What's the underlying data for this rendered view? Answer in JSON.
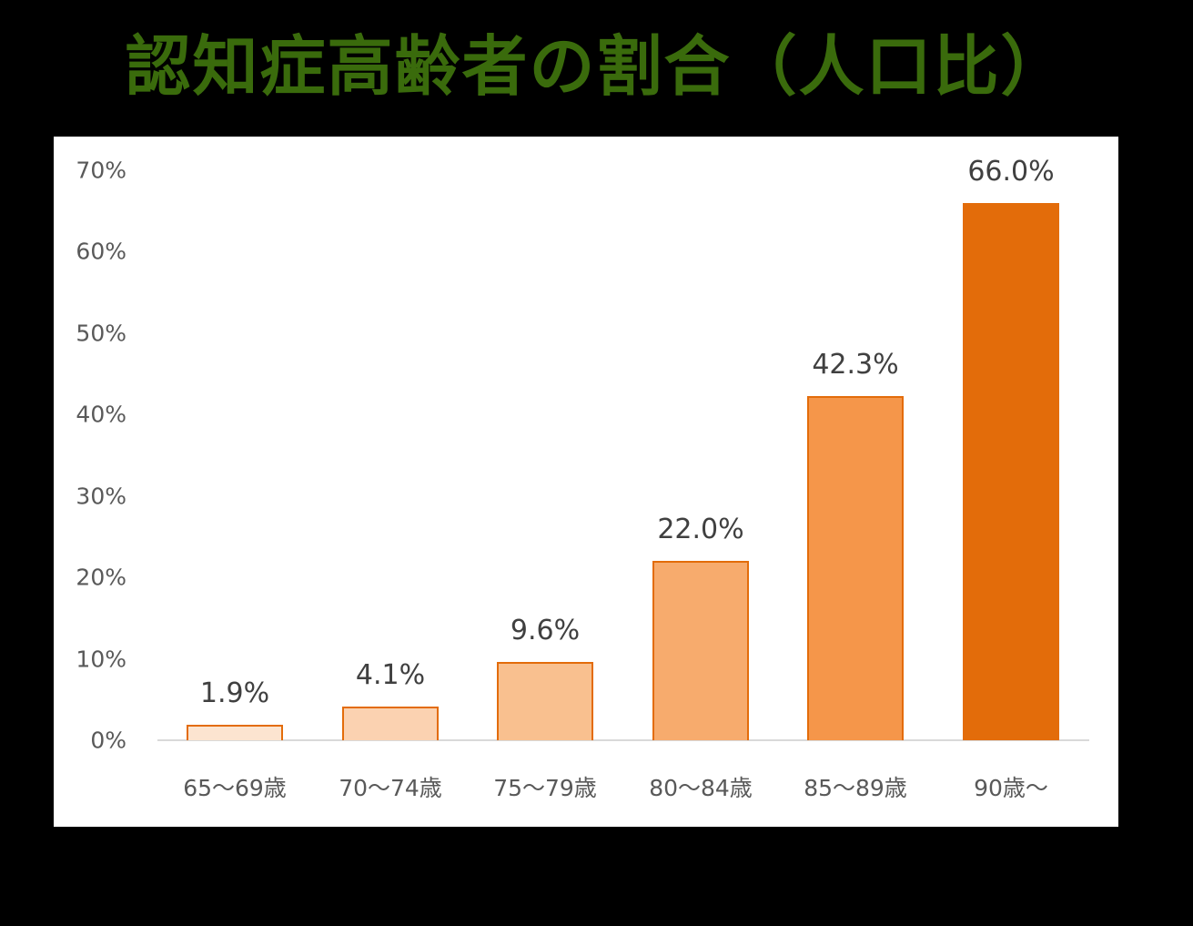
{
  "title": "認知症高齢者の割合（人口比）",
  "chart_data": {
    "type": "bar",
    "title": "認知症高齢者の割合（人口比）",
    "xlabel": "",
    "ylabel": "",
    "categories": [
      "65〜69歳",
      "70〜74歳",
      "75〜79歳",
      "80〜84歳",
      "85〜89歳",
      "90歳〜"
    ],
    "values": [
      1.9,
      4.1,
      9.6,
      22.0,
      42.3,
      66.0
    ],
    "value_labels": [
      "1.9%",
      "4.1%",
      "9.6%",
      "22.0%",
      "42.3%",
      "66.0%"
    ],
    "ylim": [
      0,
      70
    ],
    "yticks": [
      "0%",
      "10%",
      "20%",
      "30%",
      "40%",
      "50%",
      "60%",
      "70%"
    ],
    "grid": false,
    "legend": "none",
    "bar_colors": [
      "#fce4d0",
      "#fbd2b1",
      "#f9c08f",
      "#f7ab6d",
      "#f5964a",
      "#e36c0a"
    ],
    "border_color": "#e36c0a"
  }
}
